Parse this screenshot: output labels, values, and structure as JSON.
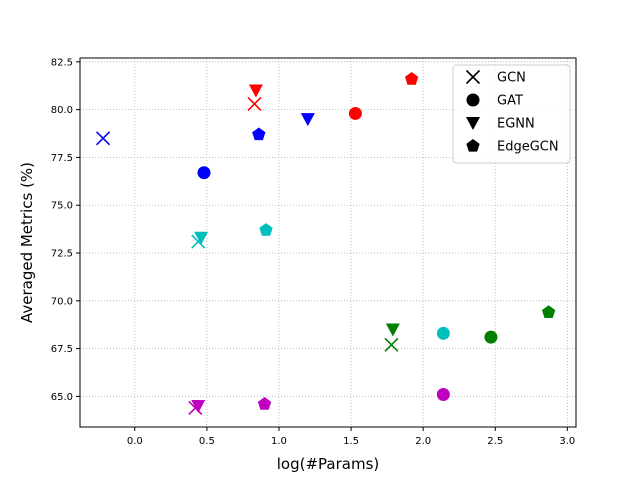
{
  "chart_data": {
    "type": "scatter",
    "title": "",
    "xlabel": "log(#Params)",
    "ylabel": "Averaged Metrics (%)",
    "xlim": [
      -0.38,
      3.06
    ],
    "ylim": [
      63.4,
      82.7
    ],
    "xticks": [
      0.0,
      0.5,
      1.0,
      1.5,
      2.0,
      2.5,
      3.0
    ],
    "yticks": [
      65.0,
      67.5,
      70.0,
      72.5,
      75.0,
      77.5,
      80.0,
      82.5
    ],
    "xtick_labels": [
      "0.0",
      "0.5",
      "1.0",
      "1.5",
      "2.0",
      "2.5",
      "3.0"
    ],
    "ytick_labels": [
      "65.0",
      "67.5",
      "70.0",
      "72.5",
      "75.0",
      "77.5",
      "80.0",
      "82.5"
    ],
    "grid": true,
    "legend_position": "top-right",
    "series": [
      {
        "name": "GCN",
        "marker": "x",
        "points": [
          {
            "x": -0.22,
            "y": 78.5,
            "color": "#0000ff"
          },
          {
            "x": 0.83,
            "y": 80.3,
            "color": "#ff0000"
          },
          {
            "x": 0.44,
            "y": 73.1,
            "color": "#00bfbf"
          },
          {
            "x": 1.78,
            "y": 67.7,
            "color": "#008000"
          },
          {
            "x": 0.42,
            "y": 64.4,
            "color": "#bf00bf"
          }
        ]
      },
      {
        "name": "GAT",
        "marker": "circle",
        "points": [
          {
            "x": 0.48,
            "y": 76.7,
            "color": "#0000ff"
          },
          {
            "x": 1.53,
            "y": 79.8,
            "color": "#ff0000"
          },
          {
            "x": 2.14,
            "y": 68.3,
            "color": "#00bfbf"
          },
          {
            "x": 2.47,
            "y": 68.1,
            "color": "#008000"
          },
          {
            "x": 2.14,
            "y": 65.1,
            "color": "#bf00bf"
          }
        ]
      },
      {
        "name": "EGNN",
        "marker": "triangle-down",
        "points": [
          {
            "x": 1.2,
            "y": 79.5,
            "color": "#0000ff"
          },
          {
            "x": 0.84,
            "y": 81.0,
            "color": "#ff0000"
          },
          {
            "x": 0.46,
            "y": 73.3,
            "color": "#00bfbf"
          },
          {
            "x": 1.79,
            "y": 68.5,
            "color": "#008000"
          },
          {
            "x": 0.44,
            "y": 64.5,
            "color": "#bf00bf"
          }
        ]
      },
      {
        "name": "EdgeGCN",
        "marker": "pentagon",
        "points": [
          {
            "x": 0.86,
            "y": 78.7,
            "color": "#0000ff"
          },
          {
            "x": 1.92,
            "y": 81.6,
            "color": "#ff0000"
          },
          {
            "x": 0.91,
            "y": 73.7,
            "color": "#00bfbf"
          },
          {
            "x": 2.87,
            "y": 69.4,
            "color": "#008000"
          },
          {
            "x": 0.9,
            "y": 64.6,
            "color": "#bf00bf"
          }
        ]
      }
    ]
  }
}
